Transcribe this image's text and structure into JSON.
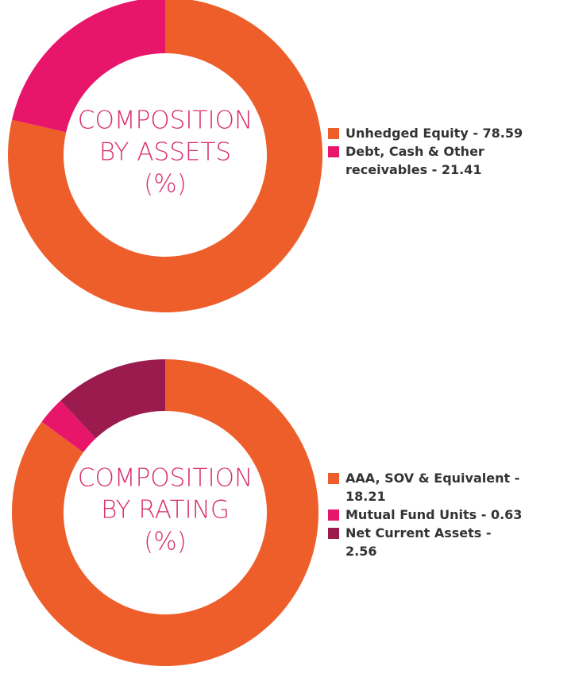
{
  "chart_data": [
    {
      "type": "donut",
      "title": [
        "COMPOSITION",
        "BY ASSETS",
        "(%)"
      ],
      "categories": [
        "Unhedged Equity - 78.59",
        "Debt, Cash & Other receivables - 21.41"
      ],
      "values": [
        78.59,
        21.41
      ],
      "colors": [
        "#ee5e2b",
        "#e8166b"
      ]
    },
    {
      "type": "donut",
      "title": [
        "COMPOSITION",
        "BY RATING",
        "(%)"
      ],
      "categories": [
        "AAA, SOV & Equivalent - 18.21",
        "Mutual Fund Units - 0.63",
        "Net Current Assets - 2.56"
      ],
      "values": [
        18.21,
        0.63,
        2.56
      ],
      "colors": [
        "#ee5e2b",
        "#e8166b",
        "#9b1b4f"
      ]
    }
  ]
}
